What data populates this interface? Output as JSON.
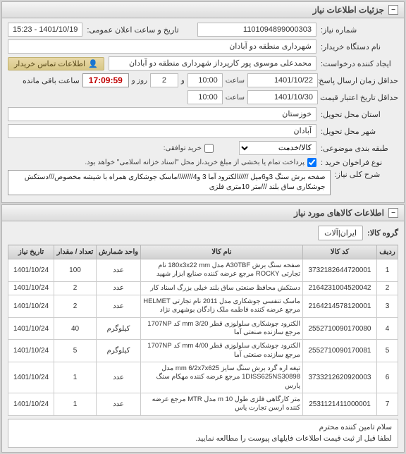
{
  "detailsPanel": {
    "title": "جزئیات اطلاعات نیاز",
    "fields": {
      "need_no_label": "شماره نیاز:",
      "need_no": "1101094899000303",
      "announce_label": "تاریخ و ساعت اعلان عمومی:",
      "announce": "1401/10/19 - 15:23",
      "buyer_label": "نام دستگاه خریدار:",
      "buyer": "شهرداری منطقه دو آبادان",
      "requester_label": "ایجاد کننده درخواست:",
      "requester": "محمدعلی موسوی پور کارپرداز شهرداری منطقه دو آبادان",
      "contact_label": "اطلاعات تماس خریدار",
      "deadline_label": "حداقل زمان ارسال پاسخ: تا تاریخ:",
      "deadline_date": "1401/10/22",
      "time_label": "ساعت",
      "deadline_time": "10:00",
      "and_label": "و",
      "days": "2",
      "days_label": "روز و",
      "countdown": "17:09:59",
      "remaining_label": "ساعت باقی مانده",
      "validity_label": "حداقل تاریخ اعتبار قیمت تا تاریخ:",
      "validity_date": "1401/10/30",
      "validity_time": "10:00",
      "province_label": "استان محل تحویل:",
      "province": "خوزستان",
      "city_label": "شهر محل تحویل:",
      "city": "آبادان",
      "category_label": "طبقه بندی موضوعی:",
      "category": "کالا/خدمت",
      "agreement_label": "خرید توافقی:",
      "payment_label": "نوع فراخوان خرید :",
      "payment_note": "پرداخت تمام یا بخشی از مبلغ خرید،از محل \"اسناد خزانه اسلامی\" خواهد بود. ",
      "summary_label": "شرح کلی نیاز:",
      "summary": "صفحه برش سنگ 3و6میل /////الکترود آما 3 و4////////ماسک جوشکاری همراه با شیشه مخصوص///دستکش جوشکاری ساق بلند ///متر 10متری فلزی"
    }
  },
  "itemsPanel": {
    "title": "اطلاعات کالاهای مورد نیاز",
    "groupLabel": "گروه کالا:",
    "groupValue": "ایران|آلات",
    "watermark_main": "ستاد ایران",
    "watermark_sub": "۱۴۰۱-۱۰-۸",
    "columns": [
      "ردیف",
      "کد کالا",
      "نام کالا",
      "واحد شمارش",
      "تعداد / مقدار",
      "تاریخ نیاز"
    ],
    "rows": [
      {
        "idx": "1",
        "code": "3732182644720001",
        "name": "صفحه سنگ برش A30TBF مدل 180x3x22 mm نام تجارتی ROCKY مرجع عرضه کننده صنایع ابزار شهید",
        "unit": "عدد",
        "qty": "100",
        "date": "1401/10/24"
      },
      {
        "idx": "2",
        "code": "2164231004520042",
        "name": "دستکش محافظ صنعتی ساق بلند خیلی بزرگ اسناد کار",
        "unit": "عدد",
        "qty": "2",
        "date": "1401/10/24"
      },
      {
        "idx": "3",
        "code": "2164214578120001",
        "name": "ماسک تنفسی جوشکاری مدل 2011 نام تجارتی HELMET مرجع عرضه کننده فاطمه ملک زادگان بوشهری نژاد",
        "unit": "عدد",
        "qty": "2",
        "date": "1401/10/24"
      },
      {
        "idx": "4",
        "code": "2552710090170080",
        "name": "الکترود جوشکاری سلولوزی قطر mm 3/20 کد 1707NP مرجع سازنده صنعتی آما",
        "unit": "کیلوگرم",
        "qty": "40",
        "date": "1401/10/24"
      },
      {
        "idx": "5",
        "code": "2552710090170081",
        "name": "الکترود جوشکاری سلولوزی قطر mm 4/00 کد 1707NP مرجع سازنده صنعتی آما",
        "unit": "کیلوگرم",
        "qty": "5",
        "date": "1401/10/24"
      },
      {
        "idx": "6",
        "code": "3733212620920003",
        "name": "تیغه اره گرد برش سنگ سایز mm 6/2x7x625 مدل 1DISS625NS30898 مرجع عرضه کننده مهکام سنگ پارس",
        "unit": "عدد",
        "qty": "1",
        "date": "1401/10/24"
      },
      {
        "idx": "7",
        "code": "2531121411000001",
        "name": "متر کارگاهی فلزی طول m 10 مدل MTR مرجع عرضه کننده ارسن تجارت یاس",
        "unit": "عدد",
        "qty": "1",
        "date": "1401/10/24"
      }
    ]
  },
  "footer": {
    "line1": "سلام تامین کننده محترم",
    "line2": "لطفا قبل از ثبت قیمت اطلاعات فایلهای پیوست را مطالعه نمایید."
  }
}
